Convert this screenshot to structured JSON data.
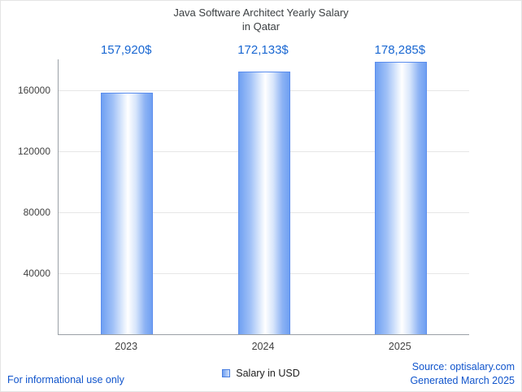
{
  "title": {
    "line1": "Java Software Architect Yearly Salary",
    "line2": "in Qatar"
  },
  "chart_data": {
    "type": "bar",
    "title": "Java Software Architect Yearly Salary in Qatar",
    "categories": [
      "2023",
      "2024",
      "2025"
    ],
    "values": [
      157920,
      172133,
      178285
    ],
    "value_labels": [
      "157,920$",
      "172,133$",
      "178,285$"
    ],
    "series_name": "Salary in USD",
    "xlabel": "",
    "ylabel": "",
    "ylim": [
      0,
      180000
    ],
    "yticks": [
      40000,
      80000,
      120000,
      160000
    ],
    "grid": true,
    "legend_position": "bottom",
    "bar_color_edge": "#6fa0f2",
    "bar_color_center": "#ffffff",
    "value_label_color": "#1967d2"
  },
  "legend": {
    "label": "Salary in USD"
  },
  "footer": {
    "left": "For informational use only",
    "source": "Source: optisalary.com",
    "generated": "Generated March 2025"
  }
}
